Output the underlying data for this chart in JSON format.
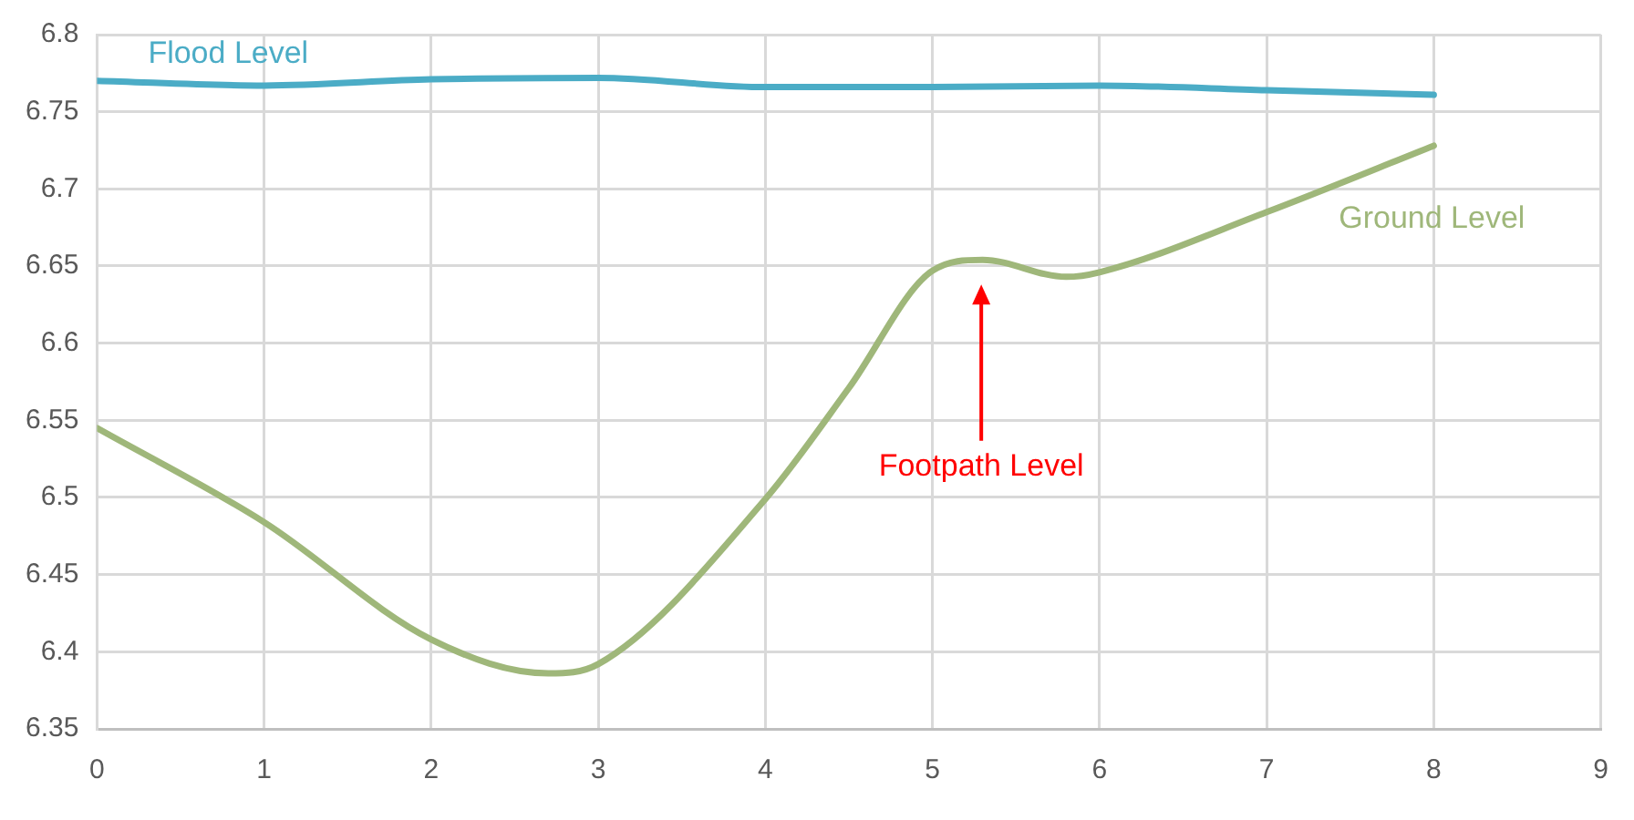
{
  "chart_data": {
    "type": "line",
    "x": [
      0,
      1,
      2,
      2.7,
      3,
      4,
      4.5,
      5,
      5.3,
      5.8,
      6,
      7,
      8
    ],
    "series": [
      {
        "name": "Flood Level",
        "color": "#4bacc6",
        "x": [
          0,
          1,
          2,
          3,
          4,
          5,
          6,
          7,
          8
        ],
        "values": [
          6.77,
          6.767,
          6.771,
          6.772,
          6.766,
          6.766,
          6.767,
          6.764,
          6.761
        ]
      },
      {
        "name": "Ground Level",
        "color": "#9fb77a",
        "values": [
          6.545,
          6.484,
          6.408,
          6.386,
          6.392,
          6.499,
          6.571,
          6.647,
          6.654,
          6.643,
          6.646,
          6.685,
          6.728
        ]
      }
    ],
    "annotations": [
      "Footpath Level"
    ],
    "xlim": [
      0,
      9
    ],
    "xticks": [
      0,
      1,
      2,
      3,
      4,
      5,
      6,
      7,
      8,
      9
    ],
    "ylim": [
      6.35,
      6.8
    ],
    "yticks": [
      6.35,
      6.4,
      6.45,
      6.5,
      6.55,
      6.6,
      6.65,
      6.7,
      6.75,
      6.8
    ],
    "grid": true,
    "legend": false,
    "marker": "none",
    "line_style": "solid"
  }
}
